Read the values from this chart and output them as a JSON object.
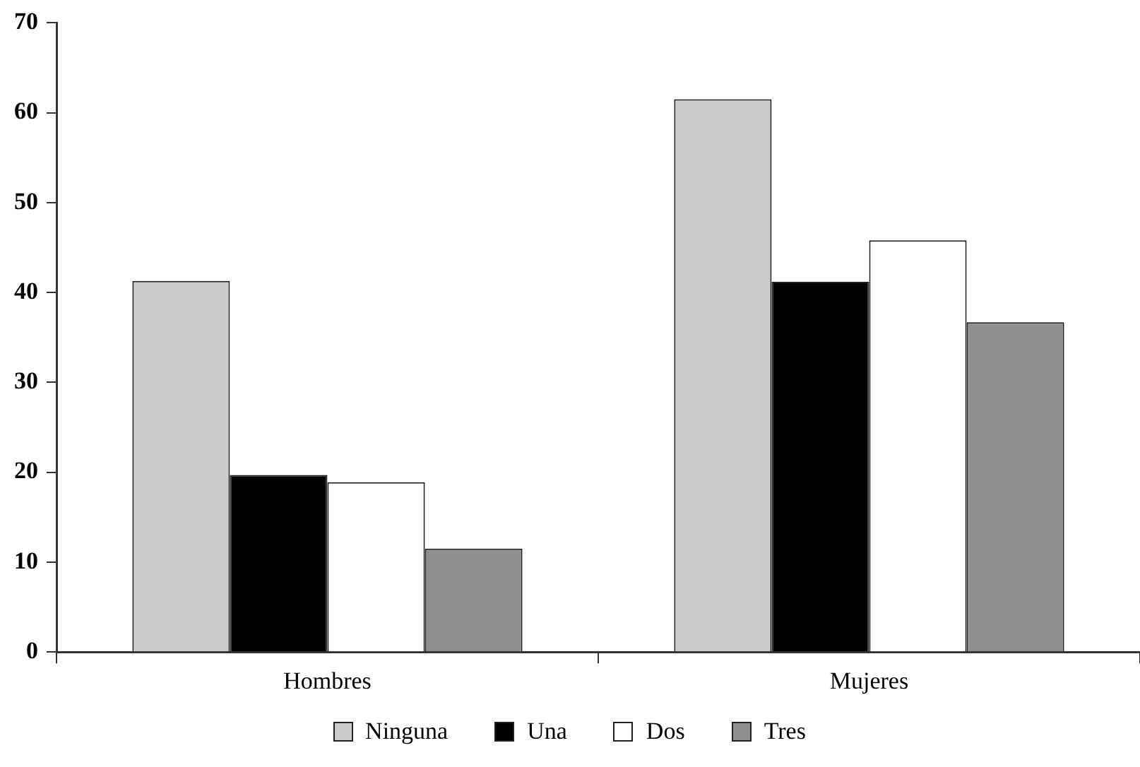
{
  "chart_data": {
    "type": "bar",
    "categories": [
      "Hombres",
      "Mujeres"
    ],
    "series": [
      {
        "name": "Ninguna",
        "color": "#cccccc",
        "values": [
          41.3,
          61.5
        ]
      },
      {
        "name": "Una",
        "color": "#000000",
        "values": [
          19.7,
          41.2
        ]
      },
      {
        "name": "Dos",
        "color": "#ffffff",
        "values": [
          18.9,
          45.8
        ]
      },
      {
        "name": "Tres",
        "color": "#8f8f8f",
        "values": [
          11.5,
          36.7
        ]
      }
    ],
    "ylim": [
      0,
      70
    ],
    "yticks": [
      0,
      10,
      20,
      30,
      40,
      50,
      60,
      70
    ],
    "grid": false,
    "legend": "bottom"
  }
}
